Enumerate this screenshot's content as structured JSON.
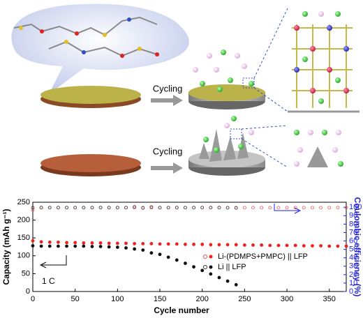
{
  "diagram": {
    "labels": [
      "Cycling",
      "Cycling"
    ]
  },
  "chart_data": {
    "type": "scatter",
    "x": [
      0,
      10,
      20,
      30,
      40,
      50,
      60,
      70,
      80,
      90,
      100,
      110,
      120,
      130,
      140,
      150,
      160,
      170,
      180,
      190,
      200,
      210,
      220,
      230,
      240,
      250,
      260,
      270,
      280,
      290,
      300,
      310,
      320,
      330,
      340,
      350,
      360,
      370
    ],
    "xlabel": "Cycle number",
    "ylabel": "Capacity (mAh g⁻¹)",
    "y2label": "Coulombic efficiency (%)",
    "xlim": [
      0,
      370
    ],
    "xticks": [
      0,
      50,
      100,
      150,
      200,
      250,
      300,
      350
    ],
    "ylim": [
      0,
      250
    ],
    "yticks": [
      0,
      50,
      100,
      150,
      200,
      250
    ],
    "y2lim": [
      0,
      106
    ],
    "y2ticks": [
      0,
      10,
      20,
      30,
      40,
      50,
      60,
      70,
      80,
      90,
      100
    ],
    "y2color": "#1f1fe0",
    "annotation": "1 C",
    "series": [
      {
        "name": "Li-(PDMPS+PMPC) || LFP",
        "color": "#ee2020",
        "marker": "filled",
        "values": [
          142,
          139,
          138,
          138,
          137,
          137,
          136,
          136,
          136,
          135,
          135,
          135,
          134,
          134,
          134,
          133,
          133,
          133,
          132,
          132,
          132,
          131,
          131,
          131,
          131,
          130,
          130,
          130,
          129,
          129,
          129,
          129,
          128,
          128,
          128,
          127,
          127,
          127
        ]
      },
      {
        "name": "Li || LFP",
        "color": "#111111",
        "marker": "filled",
        "values": [
          128,
          127,
          127,
          127,
          127,
          127,
          127,
          126,
          126,
          125,
          124,
          122,
          119,
          116,
          108,
          104,
          96,
          88,
          79,
          69,
          59,
          49,
          39,
          29,
          19,
          null,
          null,
          null,
          null,
          null,
          null,
          null,
          null,
          null,
          null,
          null,
          null,
          null
        ]
      },
      {
        "color": "#ee5050",
        "marker": "open",
        "axis": "y2",
        "values": [
          97,
          99.5,
          99.5,
          99.5,
          99.5,
          99.5,
          99.5,
          99.5,
          99.5,
          99.5,
          99.5,
          99.5,
          99.5,
          99.5,
          99.5,
          99.5,
          99.5,
          99.5,
          99.5,
          99.5,
          99.5,
          99.5,
          99.5,
          99.5,
          99.5,
          99.5,
          99.5,
          99.5,
          99.5,
          99.5,
          99.5,
          99.5,
          99.5,
          99.5,
          99.5,
          99.5,
          99.5,
          99.5
        ]
      },
      {
        "color": "#333333",
        "marker": "open",
        "axis": "y2",
        "values": [
          99.6,
          99.6,
          99.6,
          99.6,
          99.6,
          99.6,
          99.6,
          99.6,
          99.6,
          99.6,
          99.6,
          99.6,
          100.5,
          99.2,
          100.3,
          99.6,
          99.6,
          99.6,
          99.6,
          99.6,
          99.6,
          99.6,
          99.6,
          99.4,
          99.2,
          null,
          null,
          null,
          null,
          null,
          null,
          null,
          null,
          null,
          null,
          null,
          null,
          null
        ]
      }
    ]
  }
}
